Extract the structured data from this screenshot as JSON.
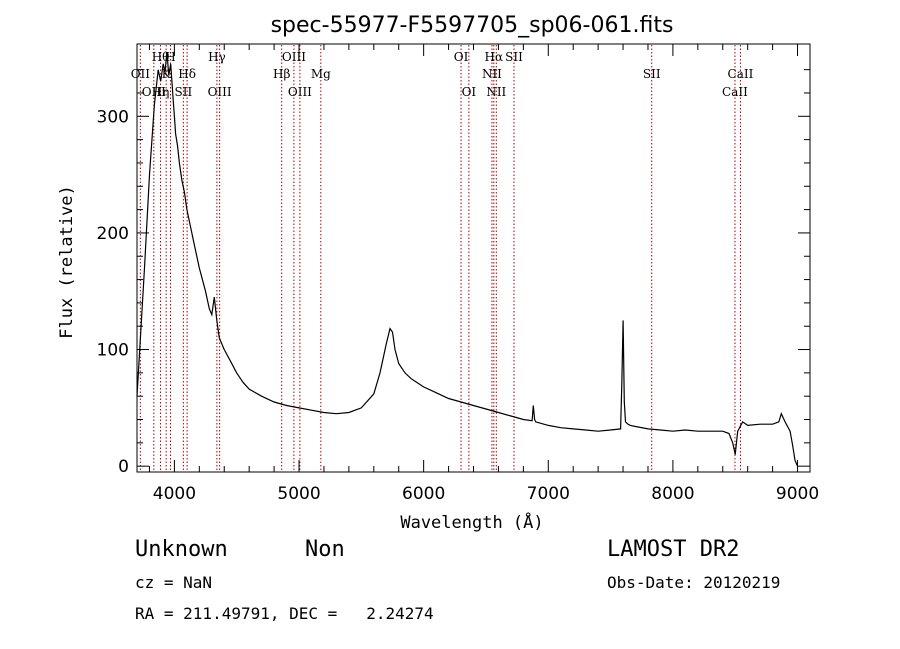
{
  "chart_data": {
    "type": "line",
    "title": "spec-55977-F5597705_sp06-061.fits",
    "xlabel": "Wavelength (Å)",
    "ylabel": "Flux (relative)",
    "xlim": [
      3700,
      9100
    ],
    "ylim": [
      -5,
      362
    ],
    "xticks": [
      4000,
      5000,
      6000,
      7000,
      8000,
      9000
    ],
    "yticks": [
      0,
      100,
      200,
      300
    ],
    "series": [
      {
        "x": [
          3700,
          3760,
          3800,
          3840,
          3870,
          3890,
          3910,
          3925,
          3940,
          3955,
          3970,
          3980,
          3990,
          4000,
          4010,
          4025,
          4040,
          4060,
          4080,
          4100,
          4130,
          4160,
          4200,
          4250,
          4280,
          4300,
          4320,
          4340,
          4360,
          4400,
          4450,
          4500,
          4550,
          4600,
          4700,
          4800,
          4900,
          5000,
          5100,
          5200,
          5300,
          5400,
          5500,
          5600,
          5650,
          5700,
          5730,
          5750,
          5770,
          5800,
          5850,
          5900,
          6000,
          6100,
          6200,
          6300,
          6400,
          6500,
          6600,
          6700,
          6800,
          6870,
          6880,
          6890,
          6900,
          7000,
          7100,
          7200,
          7300,
          7400,
          7500,
          7580,
          7590,
          7600,
          7610,
          7620,
          7640,
          7660,
          7700,
          7800,
          7900,
          8000,
          8100,
          8200,
          8300,
          8400,
          8450,
          8480,
          8500,
          8520,
          8560,
          8600,
          8700,
          8800,
          8850,
          8870,
          8900,
          8940,
          8960,
          8980,
          9000
        ],
        "y": [
          60,
          170,
          250,
          310,
          340,
          330,
          345,
          338,
          355,
          335,
          345,
          330,
          315,
          300,
          285,
          275,
          260,
          245,
          235,
          220,
          205,
          190,
          170,
          150,
          135,
          130,
          145,
          125,
          110,
          100,
          90,
          80,
          72,
          66,
          60,
          55,
          52,
          50,
          48,
          46,
          45,
          46,
          50,
          62,
          80,
          105,
          118,
          115,
          100,
          88,
          80,
          75,
          68,
          63,
          58,
          55,
          52,
          49,
          46,
          43,
          40,
          39,
          52,
          40,
          38,
          35,
          33,
          32,
          31,
          30,
          31,
          32,
          70,
          125,
          55,
          38,
          36,
          35,
          34,
          32,
          31,
          30,
          31,
          30,
          30,
          30,
          28,
          20,
          10,
          30,
          38,
          35,
          36,
          36,
          38,
          45,
          38,
          30,
          18,
          5,
          0
        ]
      }
    ],
    "lines": [
      {
        "x": 3727,
        "label": "OII",
        "row": 2
      },
      {
        "x": 3835,
        "label": "OIII",
        "row": 3
      },
      {
        "x": 3889,
        "label": "Hη",
        "row": 3
      },
      {
        "x": 3889,
        "label": "Hθ",
        "row": 0
      },
      {
        "x": 3934,
        "label": "K",
        "row": 1
      },
      {
        "x": 3969,
        "label": "H",
        "row": 0
      },
      {
        "x": 4072,
        "label": "SII",
        "row": 3
      },
      {
        "x": 4102,
        "label": "Hδ",
        "row": 1
      },
      {
        "x": 4341,
        "label": "Hγ",
        "row": 0
      },
      {
        "x": 4363,
        "label": "OIII",
        "row": 3
      },
      {
        "x": 4861,
        "label": "Hβ",
        "row": 2
      },
      {
        "x": 4959,
        "label": "OIII",
        "row": 0
      },
      {
        "x": 5007,
        "label": "OIII",
        "row": 3
      },
      {
        "x": 5175,
        "label": "Mg",
        "row": 2
      },
      {
        "x": 6300,
        "label": "OI",
        "row": 0
      },
      {
        "x": 6363,
        "label": "OI",
        "row": 3
      },
      {
        "x": 6548,
        "label": "NII",
        "row": 1
      },
      {
        "x": 6563,
        "label": "Hα",
        "row": 0
      },
      {
        "x": 6583,
        "label": "NII",
        "row": 3
      },
      {
        "x": 6725,
        "label": "SII",
        "row": 0
      },
      {
        "x": 7830,
        "label": "SII",
        "row": 2
      },
      {
        "x": 8498,
        "label": "CaII",
        "row": 3
      },
      {
        "x": 8542,
        "label": "CaII",
        "row": 2
      }
    ]
  },
  "info": {
    "class": "Unknown",
    "subclass": "Non",
    "cz": "cz = NaN",
    "radec": "RA = 211.49791, DEC =   2.24274",
    "survey": "LAMOST DR2",
    "obsdate": "Obs-Date: 20120219"
  },
  "colors": {
    "spectrum": "#000000",
    "line_markers": "#b00000"
  }
}
